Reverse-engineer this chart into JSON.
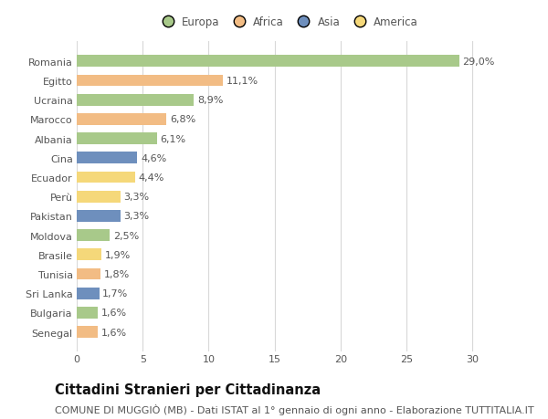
{
  "countries": [
    "Romania",
    "Egitto",
    "Ucraina",
    "Marocco",
    "Albania",
    "Cina",
    "Ecuador",
    "Perù",
    "Pakistan",
    "Moldova",
    "Brasile",
    "Tunisia",
    "Sri Lanka",
    "Bulgaria",
    "Senegal"
  ],
  "values": [
    29.0,
    11.1,
    8.9,
    6.8,
    6.1,
    4.6,
    4.4,
    3.3,
    3.3,
    2.5,
    1.9,
    1.8,
    1.7,
    1.6,
    1.6
  ],
  "labels": [
    "29,0%",
    "11,1%",
    "8,9%",
    "6,8%",
    "6,1%",
    "4,6%",
    "4,4%",
    "3,3%",
    "3,3%",
    "2,5%",
    "1,9%",
    "1,8%",
    "1,7%",
    "1,6%",
    "1,6%"
  ],
  "continents": [
    "Europa",
    "Africa",
    "Europa",
    "Africa",
    "Europa",
    "Asia",
    "America",
    "America",
    "Asia",
    "Europa",
    "America",
    "Africa",
    "Asia",
    "Europa",
    "Africa"
  ],
  "colors": {
    "Europa": "#a8c98a",
    "Africa": "#f2bc84",
    "Asia": "#6e8fbd",
    "America": "#f5d87a"
  },
  "legend_order": [
    "Europa",
    "Africa",
    "Asia",
    "America"
  ],
  "legend_colors": [
    "#a8c98a",
    "#f2bc84",
    "#6e8fbd",
    "#f5d87a"
  ],
  "bg_color": "#ffffff",
  "grid_color": "#d8d8d8",
  "bar_height": 0.6,
  "xlim": [
    0,
    32
  ],
  "xticks": [
    0,
    5,
    10,
    15,
    20,
    25,
    30
  ],
  "title": "Cittadini Stranieri per Cittadinanza",
  "subtitle": "COMUNE DI MUGGIÒ (MB) - Dati ISTAT al 1° gennaio di ogni anno - Elaborazione TUTTITALIA.IT",
  "title_fontsize": 10.5,
  "subtitle_fontsize": 8,
  "label_fontsize": 8,
  "tick_fontsize": 8,
  "legend_fontsize": 8.5
}
